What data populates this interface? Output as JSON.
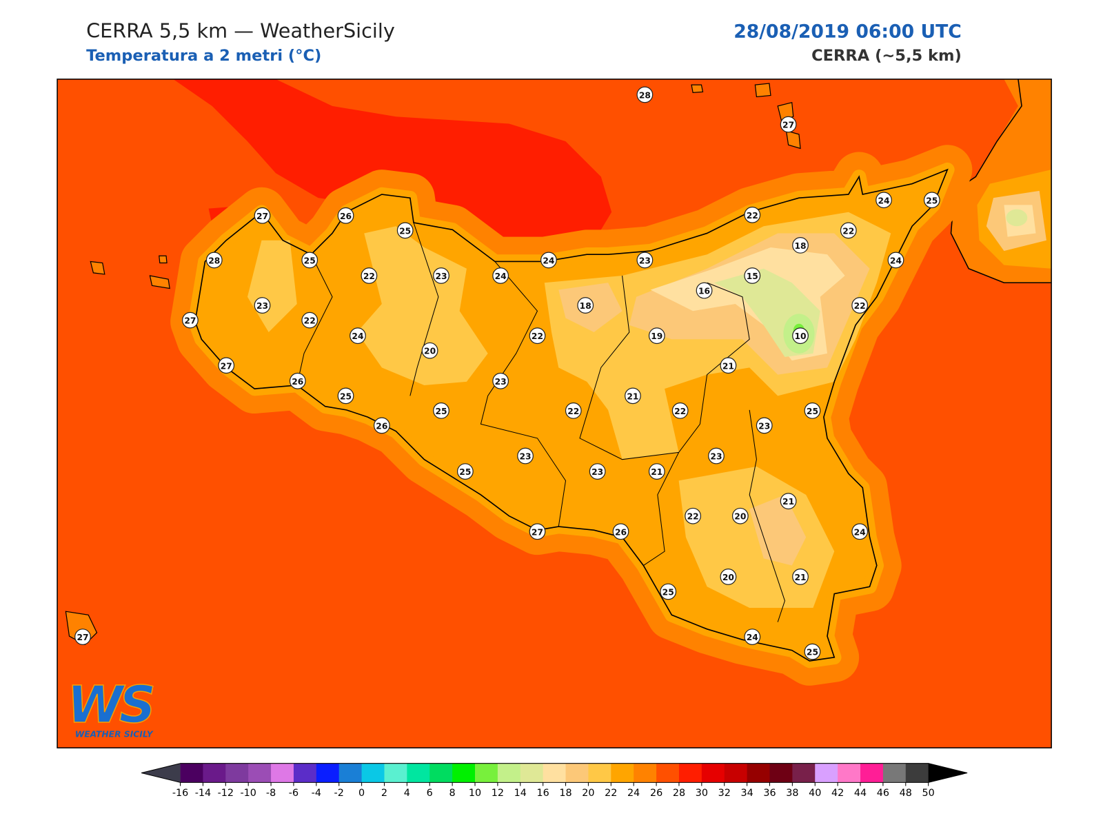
{
  "header": {
    "title": "CERRA 5,5 km — WeatherSicily",
    "subtitle": "Temperatura a 2 metri (°C)",
    "datetime": "28/08/2019 06:00 UTC",
    "model": "CERRA (~5,5 km)"
  },
  "stations": [
    28,
    27,
    27,
    26,
    25,
    28,
    25,
    22,
    23,
    24,
    24,
    23,
    22,
    18,
    22,
    24,
    25,
    24,
    15,
    16,
    18,
    23,
    22,
    27,
    24,
    19,
    10,
    22,
    22,
    20,
    21,
    27,
    26,
    23,
    25,
    21,
    22,
    25,
    22,
    25,
    26,
    23,
    23,
    23,
    25,
    23,
    21,
    21,
    22,
    20,
    24,
    27,
    26,
    20,
    21,
    25,
    24,
    25,
    27
  ],
  "colorbar": {
    "ticks": [
      -16,
      -14,
      -12,
      -10,
      -8,
      -6,
      -4,
      -2,
      0,
      2,
      4,
      6,
      8,
      10,
      12,
      14,
      16,
      18,
      20,
      22,
      24,
      26,
      28,
      30,
      32,
      34,
      36,
      38,
      40,
      42,
      44,
      46,
      48,
      50
    ],
    "colors": [
      "#4b0060",
      "#6a1a8a",
      "#7e3a9e",
      "#9b4db5",
      "#de78e6",
      "#5b2dc8",
      "#0a1eff",
      "#1a7fd6",
      "#0ac8e6",
      "#5af0d0",
      "#00e6a0",
      "#00dc60",
      "#00f000",
      "#78f03c",
      "#c3f08a",
      "#dfe896",
      "#ffe0a0",
      "#fcc878",
      "#ffc846",
      "#ffa500",
      "#ff8200",
      "#ff5000",
      "#ff1e00",
      "#e60000",
      "#c80000",
      "#960000",
      "#6e0014",
      "#78204a",
      "#d9a0ff",
      "#ff78c8",
      "#ff1e96",
      "#787878",
      "#3c3c3c"
    ],
    "under_color": "#3c3c4b",
    "over_color": "#000000"
  },
  "logo": {
    "mark": "WS",
    "name": "WEATHER SICILY"
  }
}
